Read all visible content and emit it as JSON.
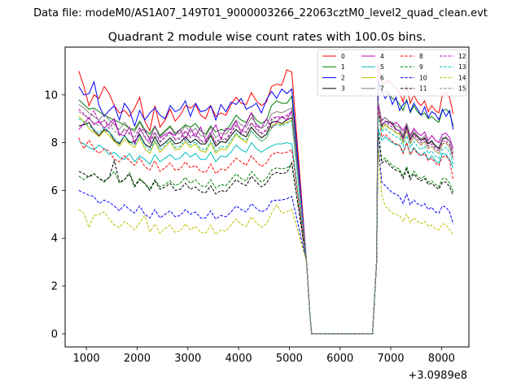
{
  "chart_data": {
    "type": "line",
    "suptitle": "Data file: modeM0/AS1A07_149T01_9000003266_22063cztM0_level2_quad_clean.evt",
    "title": "Quadrant 2 module wise count rates with 100.0s bins.",
    "xlabel": "",
    "ylabel": "",
    "x_offset_label": "+3.0989e8",
    "xlim": [
      580,
      8540
    ],
    "ylim": [
      -0.55,
      12.0
    ],
    "x_ticks": [
      1000,
      2000,
      3000,
      4000,
      5000,
      6000,
      7000,
      8000
    ],
    "y_ticks": [
      0,
      2,
      4,
      6,
      8,
      10
    ],
    "legend_location": "top-right",
    "gap": {
      "start": 5440,
      "end": 6640,
      "value": 0
    },
    "series": [
      {
        "name": "0",
        "color": "#ff0000",
        "style": "solid",
        "pre": [
          11.0,
          10.35,
          9.55,
          10.0,
          9.85,
          10.35,
          10.05,
          9.55,
          9.25,
          9.35,
          9.1,
          9.45,
          9.9,
          8.9,
          8.5,
          9.55,
          8.65,
          8.95,
          9.4,
          8.9,
          9.15,
          9.55,
          9.45,
          9.6,
          9.15,
          9.0,
          9.55,
          9.1,
          9.25,
          9.15,
          9.6,
          9.9,
          9.65,
          9.6,
          10.1,
          9.75,
          9.55,
          9.7,
          10.35,
          10.45,
          10.4,
          11.05,
          10.95
        ],
        "post": [
          11.3,
          10.5,
          10.5,
          10.6,
          10.4,
          10.3,
          10.1,
          9.7,
          10.4,
          9.65,
          10.0,
          9.7,
          9.55,
          9.75,
          9.3,
          9.55,
          9.35,
          9.25,
          10.0,
          10.1,
          9.9,
          9.2
        ]
      },
      {
        "name": "1",
        "color": "#008000",
        "style": "solid",
        "pre": [
          9.8,
          9.6,
          9.4,
          9.45,
          9.3,
          9.15,
          9.05,
          8.95,
          8.85,
          8.75,
          8.6,
          8.55,
          8.9,
          8.55,
          8.35,
          8.7,
          8.3,
          8.5,
          8.7,
          8.4,
          8.55,
          8.75,
          8.65,
          8.8,
          8.5,
          8.35,
          8.7,
          8.45,
          8.55,
          8.5,
          8.8,
          9.15,
          8.95,
          8.85,
          9.25,
          8.95,
          8.8,
          8.95,
          9.55,
          9.75,
          9.65,
          9.65,
          9.95
        ],
        "post": [
          10.5,
          10.1,
          10.15,
          10.05,
          9.85,
          9.8,
          9.6,
          9.35,
          9.8,
          9.25,
          9.55,
          9.3,
          9.15,
          9.25,
          9.0,
          9.1,
          8.95,
          8.85,
          9.35,
          9.4,
          9.25,
          8.7
        ]
      },
      {
        "name": "2",
        "color": "#0000ff",
        "style": "solid",
        "pre": [
          10.35,
          10.0,
          10.05,
          10.55,
          9.55,
          9.1,
          9.35,
          9.55,
          8.95,
          9.65,
          9.35,
          8.7,
          9.35,
          8.95,
          9.25,
          9.45,
          9.15,
          9.0,
          9.55,
          9.3,
          9.4,
          9.75,
          9.1,
          9.65,
          9.3,
          9.35,
          9.55,
          8.95,
          9.6,
          9.3,
          9.7,
          9.6,
          9.85,
          9.4,
          9.5,
          9.65,
          9.25,
          9.8,
          10.15,
          9.85,
          10.25,
          10.05,
          10.25
        ],
        "post": [
          10.6,
          10.15,
          9.85,
          10.05,
          9.6,
          9.9,
          9.35,
          9.6,
          9.75,
          9.3,
          9.65,
          9.4,
          9.15,
          9.5,
          9.05,
          9.3,
          9.2,
          8.95,
          9.4,
          9.1,
          9.35,
          8.55
        ]
      },
      {
        "name": "3",
        "color": "#000000",
        "style": "solid",
        "pre": [
          8.7,
          8.75,
          8.85,
          8.5,
          8.3,
          8.55,
          8.45,
          8.1,
          7.95,
          8.3,
          8.0,
          8.05,
          8.35,
          7.95,
          7.8,
          8.25,
          7.85,
          8.0,
          8.2,
          7.95,
          8.0,
          8.25,
          8.0,
          8.15,
          7.95,
          7.95,
          8.3,
          7.85,
          8.05,
          8.0,
          8.3,
          8.55,
          8.35,
          8.25,
          8.65,
          8.4,
          8.2,
          8.35,
          8.85,
          8.9,
          8.8,
          8.95,
          9.05
        ],
        "post": [
          9.35,
          8.7,
          8.9,
          8.85,
          8.8,
          8.55,
          8.5,
          8.2,
          8.7,
          8.15,
          8.4,
          8.25,
          8.1,
          8.2,
          7.95,
          8.05,
          7.85,
          7.75,
          8.15,
          8.2,
          8.05,
          7.55
        ]
      },
      {
        "name": "4",
        "color": "#bf00bf",
        "style": "solid",
        "pre": [
          8.55,
          8.8,
          9.05,
          8.75,
          8.9,
          8.6,
          8.8,
          9.0,
          8.35,
          8.3,
          8.65,
          7.95,
          8.5,
          8.55,
          8.1,
          8.7,
          8.2,
          8.35,
          8.45,
          8.3,
          8.55,
          8.1,
          8.6,
          8.25,
          8.65,
          8.1,
          8.4,
          8.75,
          8.15,
          8.6,
          8.55,
          8.9,
          8.4,
          8.8,
          9.25,
          8.7,
          8.6,
          9.0,
          8.6,
          8.85,
          9.1,
          8.95,
          9.35
        ],
        "post": [
          9.6,
          8.95,
          9.05,
          8.9,
          8.75,
          8.85,
          8.7,
          8.5,
          8.8,
          8.3,
          8.6,
          8.4,
          8.3,
          8.45,
          8.1,
          8.3,
          8.1,
          8.0,
          8.35,
          8.4,
          8.2,
          7.75
        ]
      },
      {
        "name": "5",
        "color": "#00bfbf",
        "style": "solid",
        "pre": [
          8.05,
          7.95,
          7.8,
          7.7,
          7.9,
          7.75,
          7.5,
          7.6,
          7.4,
          7.3,
          7.55,
          7.2,
          7.45,
          7.3,
          7.1,
          7.5,
          7.2,
          7.35,
          7.5,
          7.3,
          7.35,
          7.6,
          7.4,
          7.55,
          7.3,
          7.3,
          7.6,
          7.2,
          7.45,
          7.4,
          7.6,
          7.9,
          7.7,
          7.6,
          8.0,
          7.75,
          7.6,
          7.75,
          7.85,
          7.95,
          7.95,
          8.0,
          7.95
        ],
        "post": [
          8.65,
          8.1,
          8.25,
          8.1,
          8.0,
          7.9,
          7.9,
          7.6,
          8.0,
          7.5,
          7.8,
          7.6,
          7.45,
          7.6,
          7.3,
          7.45,
          7.25,
          7.15,
          7.55,
          7.5,
          7.3,
          6.95
        ]
      },
      {
        "name": "6",
        "color": "#bfbf00",
        "style": "solid",
        "pre": [
          9.1,
          8.9,
          8.6,
          8.4,
          8.25,
          8.5,
          8.3,
          8.05,
          7.85,
          8.15,
          7.95,
          7.8,
          8.2,
          7.75,
          7.55,
          8.05,
          7.6,
          7.8,
          8.05,
          7.7,
          7.75,
          8.05,
          7.8,
          7.95,
          7.65,
          7.6,
          8.0,
          7.55,
          7.75,
          7.7,
          8.0,
          8.35,
          8.15,
          8.0,
          8.5,
          8.25,
          8.05,
          8.2,
          8.7,
          8.8,
          8.75,
          8.85,
          8.95
        ],
        "post": [
          9.25,
          8.55,
          8.75,
          8.6,
          8.55,
          8.4,
          8.35,
          8.0,
          8.5,
          7.95,
          8.25,
          8.05,
          7.9,
          8.05,
          7.75,
          7.85,
          7.65,
          7.55,
          7.95,
          8.0,
          7.8,
          7.35
        ]
      },
      {
        "name": "7",
        "color": "#808080",
        "style": "solid",
        "pre": [
          9.6,
          9.45,
          9.25,
          9.1,
          8.95,
          9.2,
          8.95,
          8.75,
          8.55,
          8.85,
          8.6,
          8.45,
          8.85,
          8.45,
          8.2,
          8.65,
          8.25,
          8.45,
          8.65,
          8.35,
          8.4,
          8.7,
          8.45,
          8.6,
          8.3,
          8.25,
          8.65,
          8.2,
          8.4,
          8.35,
          8.65,
          8.95,
          8.75,
          8.65,
          9.05,
          8.8,
          8.6,
          8.75,
          9.2,
          9.3,
          9.25,
          9.35,
          9.45
        ],
        "post": [
          9.75,
          8.9,
          9.05,
          8.9,
          8.85,
          8.7,
          8.65,
          8.3,
          8.8,
          8.25,
          8.5,
          8.3,
          8.15,
          8.3,
          8.0,
          8.1,
          7.9,
          7.8,
          8.2,
          8.25,
          8.05,
          7.55
        ]
      },
      {
        "name": "8",
        "color": "#ff0000",
        "style": "dashed",
        "pre": [
          8.2,
          7.75,
          8.1,
          7.75,
          7.55,
          7.75,
          7.65,
          7.3,
          7.2,
          7.45,
          7.25,
          7.05,
          7.35,
          7.0,
          6.85,
          7.25,
          6.8,
          6.95,
          7.15,
          6.85,
          6.9,
          7.2,
          6.95,
          7.05,
          6.8,
          6.75,
          7.1,
          6.7,
          6.9,
          6.85,
          7.1,
          7.35,
          7.2,
          7.05,
          7.45,
          7.2,
          7.0,
          7.15,
          7.5,
          7.6,
          7.55,
          7.6,
          7.7
        ],
        "post": [
          9.45,
          8.25,
          8.35,
          8.2,
          8.05,
          7.95,
          7.9,
          7.55,
          8.0,
          7.5,
          7.75,
          7.55,
          7.45,
          7.55,
          7.25,
          7.35,
          7.15,
          7.05,
          7.4,
          7.45,
          7.25,
          6.45
        ]
      },
      {
        "name": "9",
        "color": "#008000",
        "style": "dashed",
        "pre": [
          6.6,
          6.45,
          6.6,
          6.7,
          6.5,
          6.35,
          6.55,
          6.8,
          6.3,
          6.45,
          6.75,
          6.2,
          6.5,
          6.3,
          6.05,
          6.45,
          6.15,
          6.25,
          6.4,
          6.2,
          6.3,
          6.55,
          6.3,
          6.45,
          6.2,
          6.15,
          6.45,
          6.1,
          6.25,
          6.2,
          6.45,
          6.7,
          6.5,
          6.4,
          6.8,
          6.55,
          6.35,
          6.5,
          6.85,
          6.95,
          6.9,
          6.95,
          7.1
        ],
        "post": [
          8.6,
          7.25,
          7.35,
          7.2,
          7.05,
          6.95,
          6.9,
          6.6,
          7.0,
          6.55,
          6.8,
          6.6,
          6.5,
          6.6,
          6.35,
          6.4,
          6.25,
          6.15,
          6.5,
          6.5,
          6.3,
          5.95
        ]
      },
      {
        "name": "10",
        "color": "#0000ff",
        "style": "dashed",
        "pre": [
          6.0,
          5.9,
          5.8,
          5.75,
          5.45,
          5.6,
          5.5,
          5.35,
          5.15,
          5.4,
          5.2,
          5.05,
          5.35,
          5.0,
          4.85,
          5.2,
          4.85,
          5.0,
          5.15,
          4.9,
          4.95,
          5.2,
          5.0,
          5.1,
          4.85,
          4.85,
          5.15,
          4.8,
          4.95,
          4.9,
          5.1,
          5.35,
          5.2,
          5.1,
          5.45,
          5.25,
          5.1,
          5.2,
          5.55,
          5.6,
          5.6,
          5.65,
          5.75
        ],
        "post": [
          8.0,
          6.35,
          6.2,
          6.05,
          5.9,
          5.85,
          5.75,
          5.45,
          5.85,
          5.4,
          5.6,
          5.45,
          5.35,
          5.45,
          5.2,
          5.3,
          5.1,
          5.05,
          5.35,
          5.3,
          5.1,
          4.6
        ]
      },
      {
        "name": "11",
        "color": "#000000",
        "style": "dashed",
        "pre": [
          6.8,
          6.7,
          6.55,
          6.7,
          6.5,
          6.4,
          6.55,
          7.25,
          6.35,
          6.45,
          6.7,
          6.15,
          6.45,
          6.3,
          6.0,
          6.4,
          6.05,
          6.15,
          6.3,
          6.0,
          6.05,
          6.3,
          6.05,
          6.15,
          5.95,
          5.9,
          6.2,
          5.85,
          6.0,
          5.95,
          6.2,
          6.45,
          6.3,
          6.2,
          6.6,
          6.35,
          6.15,
          6.3,
          6.65,
          6.75,
          6.7,
          6.75,
          7.15
        ],
        "post": [
          8.5,
          7.15,
          7.25,
          7.1,
          6.95,
          6.85,
          6.8,
          6.5,
          6.9,
          6.45,
          6.7,
          6.5,
          6.4,
          6.5,
          6.25,
          6.3,
          6.15,
          6.05,
          6.35,
          6.35,
          6.15,
          5.8
        ]
      },
      {
        "name": "12",
        "color": "#bf00bf",
        "style": "dashed",
        "pre": [
          9.4,
          9.2,
          9.0,
          9.35,
          8.8,
          8.95,
          8.6,
          8.9,
          8.3,
          8.55,
          8.4,
          8.2,
          8.65,
          8.25,
          8.0,
          8.45,
          8.05,
          8.25,
          8.45,
          8.15,
          8.2,
          8.5,
          8.25,
          8.4,
          8.1,
          8.05,
          8.45,
          8.0,
          8.2,
          8.15,
          8.45,
          8.75,
          8.55,
          8.45,
          8.85,
          8.6,
          8.4,
          8.55,
          9.0,
          9.1,
          9.05,
          9.15,
          9.3
        ],
        "post": [
          9.55,
          8.75,
          8.9,
          8.75,
          8.65,
          8.55,
          8.5,
          8.15,
          8.6,
          8.1,
          8.35,
          8.15,
          8.0,
          8.15,
          7.85,
          7.95,
          7.75,
          7.65,
          8.05,
          8.1,
          7.9,
          7.4
        ]
      },
      {
        "name": "13",
        "color": "#00bfbf",
        "style": "dashed",
        "pre": [
          9.0,
          8.85,
          8.7,
          8.55,
          8.4,
          8.65,
          8.45,
          8.2,
          8.0,
          8.3,
          8.05,
          7.9,
          8.3,
          7.9,
          7.65,
          8.1,
          7.7,
          7.9,
          8.1,
          7.8,
          7.85,
          8.15,
          7.9,
          8.05,
          7.75,
          7.7,
          8.1,
          7.65,
          7.85,
          7.8,
          8.1,
          8.4,
          8.2,
          8.1,
          8.5,
          8.25,
          8.05,
          8.2,
          8.65,
          8.75,
          8.7,
          8.8,
          8.9
        ],
        "post": [
          9.15,
          8.45,
          8.6,
          8.45,
          8.35,
          8.25,
          8.2,
          7.85,
          8.3,
          7.8,
          8.05,
          7.85,
          7.7,
          7.85,
          7.55,
          7.65,
          7.45,
          7.35,
          7.75,
          7.8,
          7.6,
          7.1
        ]
      },
      {
        "name": "14",
        "color": "#bfbf00",
        "style": "dashed",
        "pre": [
          5.2,
          5.05,
          4.45,
          4.95,
          5.0,
          5.1,
          4.8,
          4.55,
          4.45,
          4.7,
          4.55,
          4.35,
          4.65,
          4.95,
          4.25,
          4.6,
          4.2,
          4.4,
          4.55,
          4.25,
          4.3,
          4.6,
          4.35,
          4.5,
          4.25,
          4.2,
          4.55,
          4.15,
          4.35,
          4.3,
          4.55,
          4.8,
          4.6,
          4.5,
          4.9,
          4.65,
          4.45,
          4.6,
          5.05,
          5.4,
          5.05,
          5.1,
          5.2
        ],
        "post": [
          7.8,
          5.8,
          5.35,
          5.2,
          5.05,
          5.0,
          4.95,
          4.7,
          5.0,
          4.65,
          4.85,
          4.7,
          4.6,
          4.7,
          4.5,
          4.55,
          4.4,
          4.35,
          4.6,
          4.55,
          4.35,
          4.15
        ]
      },
      {
        "name": "15",
        "color": "#808080",
        "style": "dashed",
        "pre": [
          9.3,
          9.15,
          9.0,
          8.85,
          8.7,
          8.95,
          8.75,
          8.5,
          8.3,
          8.6,
          8.35,
          8.2,
          8.6,
          8.2,
          7.95,
          8.4,
          8.0,
          8.2,
          8.4,
          8.1,
          8.15,
          8.45,
          8.2,
          8.35,
          8.05,
          8.0,
          8.4,
          7.95,
          8.15,
          8.1,
          8.4,
          8.7,
          8.5,
          8.4,
          8.8,
          8.55,
          8.35,
          8.5,
          8.95,
          9.05,
          9.0,
          9.1,
          9.2
        ],
        "post": [
          9.4,
          8.65,
          8.8,
          8.65,
          8.55,
          8.45,
          8.4,
          8.05,
          8.5,
          8.0,
          8.25,
          8.05,
          7.9,
          8.05,
          7.75,
          7.85,
          7.65,
          7.55,
          7.95,
          8.0,
          7.8,
          7.3
        ]
      }
    ]
  }
}
